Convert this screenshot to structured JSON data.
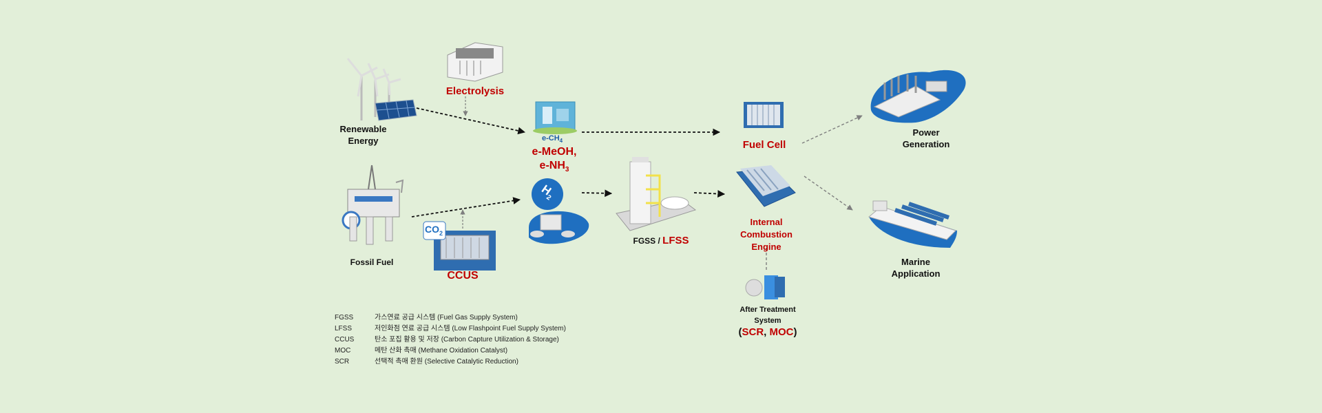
{
  "nodes": {
    "renewable": [
      "Renewable",
      "Energy"
    ],
    "fossil": "Fossil Fuel",
    "electrolysis": "Electrolysis",
    "ccus": "CCUS",
    "co2_badge": "CO",
    "co2_sub": "2",
    "h2_badge": "H",
    "h2_sub": "2",
    "ech4_main": "e-CH",
    "ech4_sub": "4",
    "emeoh": "e-MeOH,",
    "enh_main": "e-NH",
    "enh_sub": "3",
    "fgss": "FGSS",
    "fgss_sep": " / ",
    "lfss": "LFSS",
    "fuel_cell": "Fuel Cell",
    "ice": [
      "Internal",
      "Combustion",
      "Engine"
    ],
    "after_treatment": [
      "After Treatment",
      "System"
    ],
    "scr_open": "(",
    "scr": "SCR",
    "scr_sep": ", ",
    "moc": "MOC",
    "scr_close": ")",
    "power": [
      "Power",
      "Generation"
    ],
    "marine": [
      "Marine",
      "Application"
    ]
  },
  "legend": [
    {
      "abbr": "FGSS",
      "desc": "가스연료 공급 시스템 (Fuel Gas Supply System)"
    },
    {
      "abbr": "LFSS",
      "desc": "저인화점 연료 공급 시스템 (Low Flashpoint Fuel Supply System)"
    },
    {
      "abbr": "CCUS",
      "desc": "탄소 포집 활용 및 저장 (Carbon Capture  Utilization & Storage)"
    },
    {
      "abbr": "MOC",
      "desc": "메탄 산화 촉매 (Methane Oxidation Catalyst)"
    },
    {
      "abbr": "SCR",
      "desc": "선택적 촉매 환원 (Selective Catalytic Reduction)"
    }
  ],
  "colors": {
    "background": "#e2efd9",
    "red_label": "#c00000",
    "blue_accent": "#1f6fc0",
    "arrow_black": "#111111",
    "arrow_gray": "#7f7f7f"
  }
}
